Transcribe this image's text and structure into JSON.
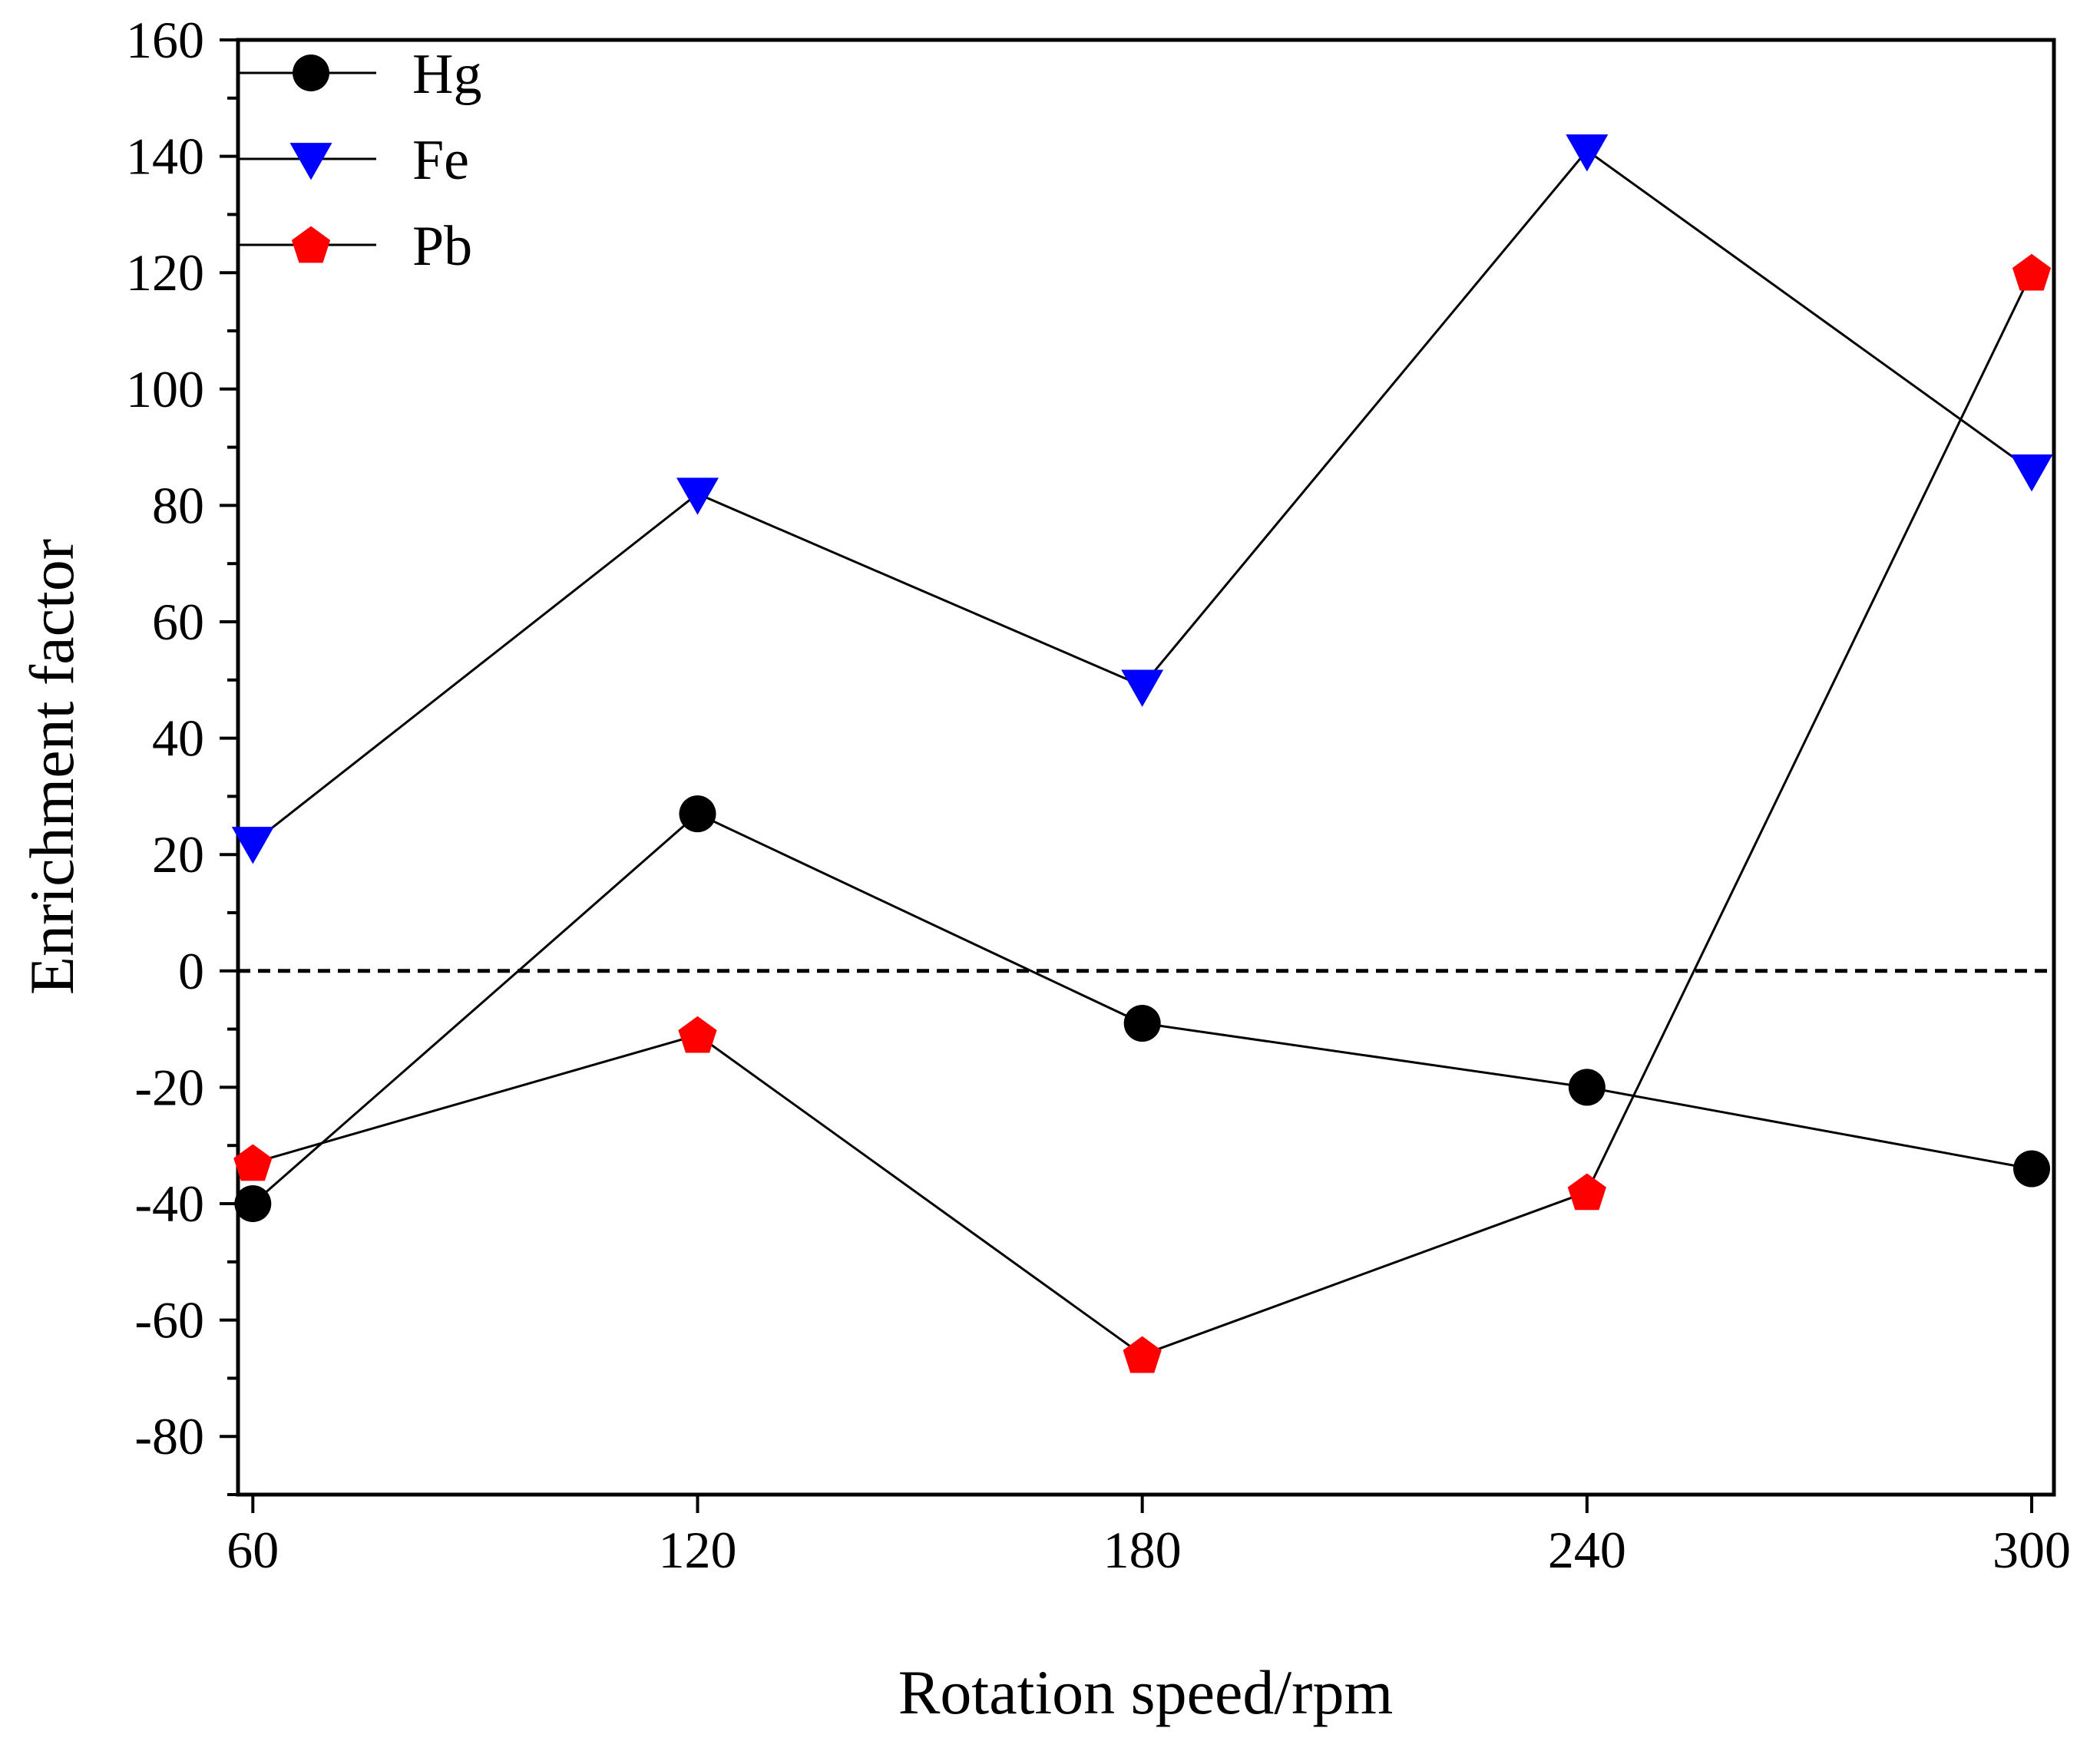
{
  "chart_data": {
    "type": "line",
    "xlabel": "Rotation speed/rpm",
    "ylabel": "Enrichment factor",
    "x": [
      60,
      120,
      180,
      240,
      300
    ],
    "xticks": [
      "60",
      "120",
      "180",
      "240",
      "300"
    ],
    "xlim": [
      58,
      303
    ],
    "ylim": [
      -90,
      160
    ],
    "yticks": [
      "160",
      "140",
      "120",
      "100",
      "80",
      "60",
      "40",
      "20",
      "0",
      "-20",
      "-40",
      "-60",
      "-80"
    ],
    "ytick_values": [
      160,
      140,
      120,
      100,
      80,
      60,
      40,
      20,
      0,
      -20,
      -40,
      -60,
      -80
    ],
    "reference_line": {
      "y": 0,
      "style": "dashed"
    },
    "legend_position": "top-left",
    "grid": false,
    "series": [
      {
        "name": "Hg",
        "marker": "circle",
        "color": "#000000",
        "values": [
          -40,
          27,
          -9,
          -20,
          -34
        ]
      },
      {
        "name": "Fe",
        "marker": "down-triangle",
        "color": "#0000ff",
        "values": [
          22,
          82,
          49,
          141,
          86
        ]
      },
      {
        "name": "Pb",
        "marker": "pentagon",
        "color": "#ff0000",
        "values": [
          -33,
          -11,
          -66,
          -38,
          120
        ]
      }
    ]
  }
}
